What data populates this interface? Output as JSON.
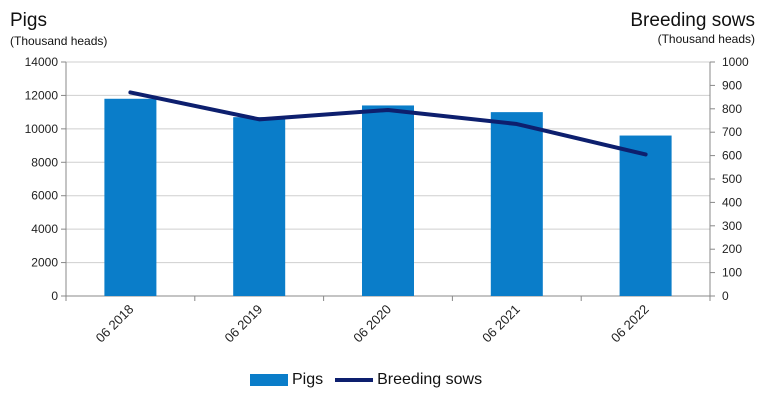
{
  "chart_data": {
    "type": "bar+line",
    "left_axis": {
      "title": "Pigs",
      "unit": "(Thousand heads)",
      "ylim": [
        0,
        14000
      ],
      "ticks": [
        "0",
        "2000",
        "4000",
        "6000",
        "8000",
        "10000",
        "12000",
        "14000"
      ]
    },
    "right_axis": {
      "title": "Breeding sows",
      "unit": "(Thousand heads)",
      "ylim": [
        0,
        1000
      ],
      "ticks": [
        "0",
        "100",
        "200",
        "300",
        "400",
        "500",
        "600",
        "700",
        "800",
        "900",
        "1000"
      ]
    },
    "categories": [
      "06 2018",
      "06 2019",
      "06 2020",
      "06 2021",
      "06 2022"
    ],
    "series": [
      {
        "name": "Pigs",
        "type": "bar",
        "axis": "left",
        "color": "#0a7dc9",
        "values": [
          11800,
          10700,
          11400,
          11000,
          9600
        ]
      },
      {
        "name": "Breeding sows",
        "type": "line",
        "axis": "right",
        "color": "#0d1f6e",
        "values": [
          870,
          755,
          795,
          735,
          605
        ]
      }
    ],
    "grid": true,
    "legend_position": "bottom"
  }
}
